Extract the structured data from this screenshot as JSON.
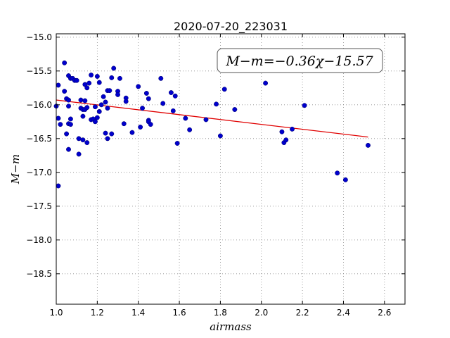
{
  "chart_data": {
    "type": "scatter",
    "title": "2020-07-20_223031",
    "xlabel": "airmass",
    "ylabel": "M−m",
    "xlim": [
      1.0,
      2.7
    ],
    "ylim": [
      -18.95,
      -14.95
    ],
    "y_inverted": true,
    "grid": true,
    "x_ticks": [
      "1.0",
      "1.2",
      "1.4",
      "1.6",
      "1.8",
      "2.0",
      "2.2",
      "2.4",
      "2.6"
    ],
    "y_ticks": [
      "−15.0",
      "−15.5",
      "−16.0",
      "−16.5",
      "−17.0",
      "−17.5",
      "−18.0",
      "−18.5"
    ],
    "x_tick_values": [
      1.0,
      1.2,
      1.4,
      1.6,
      1.8,
      2.0,
      2.2,
      2.4,
      2.6
    ],
    "y_tick_values": [
      -15.0,
      -15.5,
      -16.0,
      -16.5,
      -17.0,
      -17.5,
      -18.0,
      -18.5
    ],
    "annotation": "M−m=−0.36χ−15.57",
    "fit": {
      "slope": -0.36,
      "intercept": -15.57,
      "x_range": [
        1.0,
        2.52
      ],
      "color": "#e00000"
    },
    "point_color": "#0000cc",
    "points": [
      [
        1.04,
        -15.38
      ],
      [
        1.01,
        -15.71
      ],
      [
        1.04,
        -15.8
      ],
      [
        1.05,
        -15.91
      ],
      [
        1.06,
        -15.93
      ],
      [
        1.06,
        -16.02
      ],
      [
        1.0,
        -16.02
      ],
      [
        1.01,
        -16.2
      ],
      [
        1.02,
        -16.29
      ],
      [
        1.05,
        -16.43
      ],
      [
        1.07,
        -16.21
      ],
      [
        1.06,
        -16.28
      ],
      [
        1.07,
        -16.29
      ],
      [
        1.06,
        -16.66
      ],
      [
        1.11,
        -16.73
      ],
      [
        1.11,
        -16.5
      ],
      [
        1.13,
        -16.52
      ],
      [
        1.01,
        -17.2
      ],
      [
        1.06,
        -15.57
      ],
      [
        1.07,
        -15.61
      ],
      [
        1.08,
        -15.61
      ],
      [
        1.09,
        -15.64
      ],
      [
        1.1,
        -15.64
      ],
      [
        1.12,
        -15.93
      ],
      [
        1.12,
        -16.05
      ],
      [
        1.13,
        -16.07
      ],
      [
        1.14,
        -15.94
      ],
      [
        1.13,
        -16.17
      ],
      [
        1.14,
        -16.07
      ],
      [
        1.15,
        -16.04
      ],
      [
        1.14,
        -15.7
      ],
      [
        1.15,
        -15.75
      ],
      [
        1.16,
        -15.68
      ],
      [
        1.17,
        -15.56
      ],
      [
        1.17,
        -16.22
      ],
      [
        1.18,
        -16.21
      ],
      [
        1.19,
        -16.03
      ],
      [
        1.19,
        -16.25
      ],
      [
        1.2,
        -16.19
      ],
      [
        1.2,
        -15.58
      ],
      [
        1.21,
        -15.67
      ],
      [
        1.21,
        -16.1
      ],
      [
        1.22,
        -16.0
      ],
      [
        1.23,
        -15.88
      ],
      [
        1.24,
        -15.96
      ],
      [
        1.25,
        -15.79
      ],
      [
        1.25,
        -16.05
      ],
      [
        1.26,
        -15.79
      ],
      [
        1.24,
        -16.42
      ],
      [
        1.25,
        -16.5
      ],
      [
        1.15,
        -16.56
      ],
      [
        1.27,
        -15.6
      ],
      [
        1.28,
        -15.46
      ],
      [
        1.27,
        -16.43
      ],
      [
        1.3,
        -15.8
      ],
      [
        1.3,
        -15.85
      ],
      [
        1.31,
        -15.61
      ],
      [
        1.33,
        -16.28
      ],
      [
        1.34,
        -15.9
      ],
      [
        1.34,
        -15.95
      ],
      [
        1.37,
        -16.41
      ],
      [
        1.4,
        -15.73
      ],
      [
        1.41,
        -16.33
      ],
      [
        1.42,
        -16.05
      ],
      [
        1.44,
        -15.83
      ],
      [
        1.45,
        -15.91
      ],
      [
        1.45,
        -16.23
      ],
      [
        1.45,
        -16.25
      ],
      [
        1.46,
        -16.29
      ],
      [
        1.51,
        -15.61
      ],
      [
        1.52,
        -15.98
      ],
      [
        1.56,
        -15.82
      ],
      [
        1.58,
        -15.87
      ],
      [
        1.57,
        -16.09
      ],
      [
        1.59,
        -16.57
      ],
      [
        1.63,
        -16.2
      ],
      [
        1.65,
        -16.37
      ],
      [
        1.73,
        -16.22
      ],
      [
        1.78,
        -15.99
      ],
      [
        1.8,
        -16.46
      ],
      [
        1.82,
        -15.77
      ],
      [
        1.87,
        -16.07
      ],
      [
        2.02,
        -15.68
      ],
      [
        2.1,
        -16.4
      ],
      [
        2.11,
        -16.56
      ],
      [
        2.12,
        -16.52
      ],
      [
        2.15,
        -16.36
      ],
      [
        2.21,
        -16.01
      ],
      [
        2.37,
        -17.01
      ],
      [
        2.41,
        -17.11
      ],
      [
        2.52,
        -16.6
      ]
    ]
  }
}
